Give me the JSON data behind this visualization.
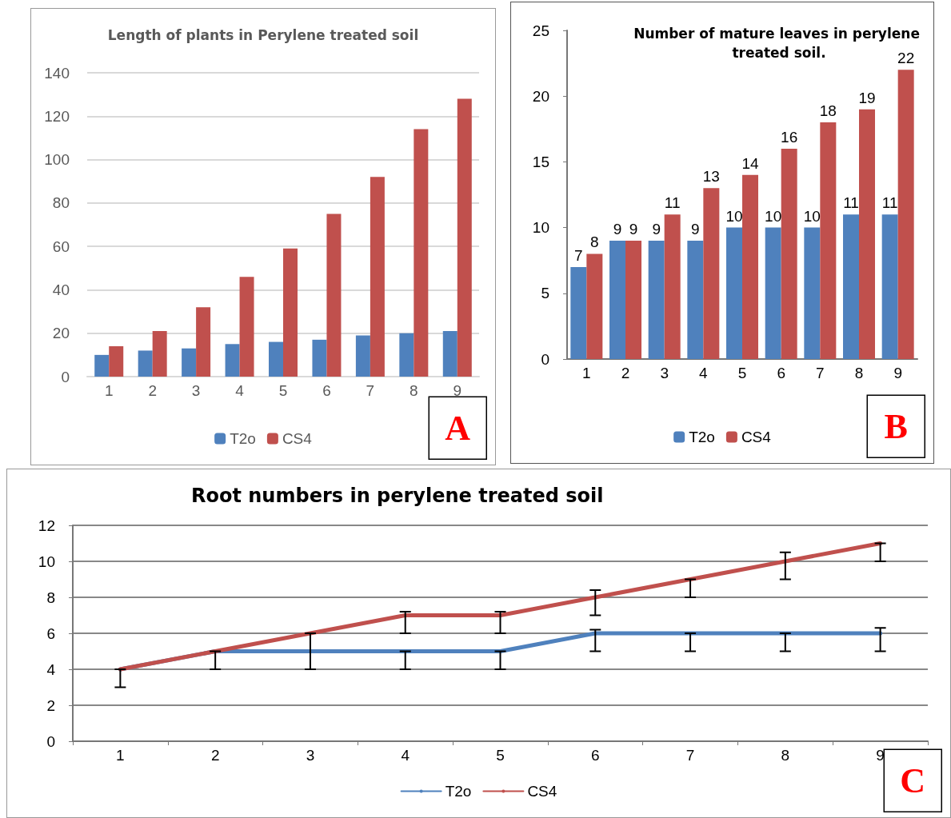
{
  "chart_data": [
    {
      "type": "bar",
      "title": "Length of plants in Perylene treated soil",
      "categories": [
        "1",
        "2",
        "3",
        "4",
        "5",
        "6",
        "7",
        "8",
        "9"
      ],
      "series": [
        {
          "name": "T2o",
          "color": "#4f81bd",
          "values": [
            10,
            12,
            13,
            15,
            16,
            17,
            19,
            20,
            21
          ]
        },
        {
          "name": "CS4",
          "color": "#c0504d",
          "values": [
            14,
            21,
            32,
            46,
            59,
            75,
            92,
            114,
            128
          ]
        }
      ],
      "ylim": [
        0,
        140
      ],
      "yticks": [
        0,
        20,
        40,
        60,
        80,
        100,
        120,
        140
      ],
      "grid": "y",
      "legend": "bottom",
      "annotations": [
        "A"
      ]
    },
    {
      "type": "bar",
      "title": "Number of mature leaves in perylene treated soil.",
      "categories": [
        "1",
        "2",
        "3",
        "4",
        "5",
        "6",
        "7",
        "8",
        "9"
      ],
      "series": [
        {
          "name": "T2o",
          "color": "#4f81bd",
          "values": [
            7,
            9,
            9,
            9,
            10,
            10,
            10,
            11,
            11
          ]
        },
        {
          "name": "CS4",
          "color": "#c0504d",
          "values": [
            8,
            9,
            11,
            13,
            14,
            16,
            18,
            19,
            22
          ]
        }
      ],
      "ylim": [
        0,
        25
      ],
      "yticks": [
        0,
        5,
        10,
        15,
        20,
        25
      ],
      "grid": false,
      "data_labels": true,
      "legend": "bottom",
      "annotations": [
        "B"
      ]
    },
    {
      "type": "line",
      "title": "Root numbers in perylene treated soil",
      "categories": [
        "1",
        "2",
        "3",
        "4",
        "5",
        "6",
        "7",
        "8",
        "9"
      ],
      "series": [
        {
          "name": "T2o",
          "color": "#4f81bd",
          "values": [
            4,
            5,
            5,
            5,
            5,
            6,
            6,
            6,
            6
          ],
          "errors": [
            [
              3,
              4
            ],
            [
              4,
              5
            ],
            1,
            [
              4,
              5
            ],
            [
              4,
              5
            ],
            [
              5,
              6.2
            ],
            [
              5,
              6
            ],
            [
              5,
              6
            ],
            [
              5,
              6.3
            ]
          ]
        },
        {
          "name": "CS4",
          "color": "#c0504d",
          "values": [
            4,
            5,
            6,
            7,
            7,
            8,
            9,
            10,
            11
          ],
          "errors": [
            null,
            null,
            null,
            [
              6,
              7.2
            ],
            [
              6,
              7.2
            ],
            [
              7,
              8.4
            ],
            [
              8,
              9
            ],
            [
              9,
              10.5
            ],
            [
              10,
              11
            ]
          ]
        }
      ],
      "ylim": [
        0,
        12
      ],
      "yticks": [
        0,
        2,
        4,
        6,
        8,
        10,
        12
      ],
      "grid": "y",
      "marker": "none",
      "line_style": "solid",
      "legend": "bottom",
      "annotations": [
        "C"
      ]
    }
  ]
}
